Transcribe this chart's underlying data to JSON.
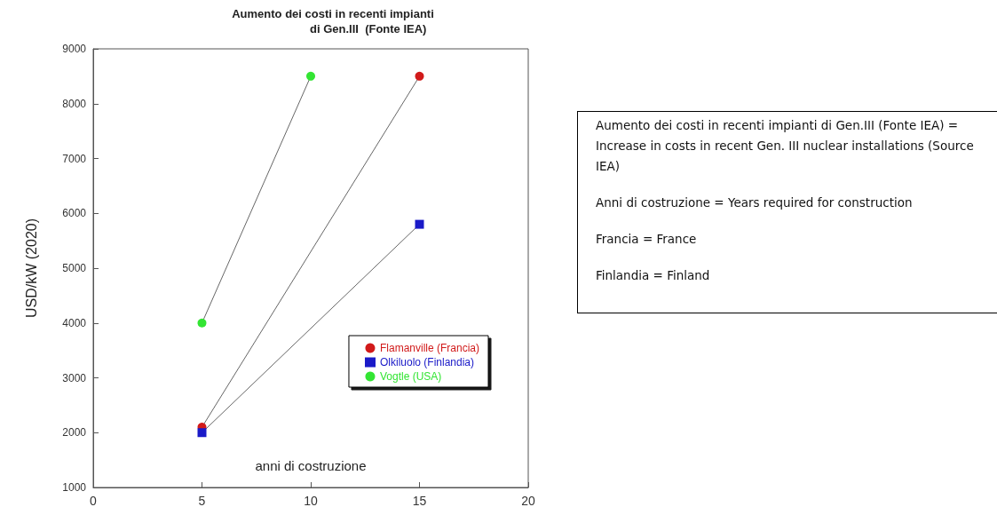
{
  "chart_data": {
    "type": "line",
    "title": "Aumento dei costi in recenti impianti\n                      di Gen.III  (Fonte IEA)",
    "xlabel": "anni di costruzione",
    "ylabel": "USD/kW (2020)",
    "series": [
      {
        "name": "Flamanville (Francia)",
        "color": "#d11a1a",
        "marker": "circle",
        "x": [
          5,
          15
        ],
        "values": [
          2100,
          8500
        ]
      },
      {
        "name": "Olkiluolo (Finlandia)",
        "color": "#1a1ac8",
        "marker": "square",
        "x": [
          5,
          15
        ],
        "values": [
          2000,
          5800
        ]
      },
      {
        "name": "Vogtle (USA)",
        "color": "#33e533",
        "marker": "circle",
        "x": [
          5,
          10
        ],
        "values": [
          4000,
          8500
        ]
      }
    ],
    "xlim": [
      0,
      20
    ],
    "xticks": [
      0,
      5,
      10,
      15,
      20
    ],
    "ylim": [
      1000,
      9000
    ],
    "yticks": [
      1000,
      2000,
      3000,
      4000,
      5000,
      6000,
      7000,
      8000,
      9000
    ],
    "grid": false,
    "legend": "bottom right",
    "line_style": "solid",
    "annotations": [
      "Aumento dei costi in recenti impianti di Gen.III (Fonte IEA) = Increase in costs in recent Gen. III nuclear installations (Source IEA)",
      "Anni di costruzione = Years required for construction",
      "Francia = France",
      "Finlandia = Finland"
    ]
  }
}
